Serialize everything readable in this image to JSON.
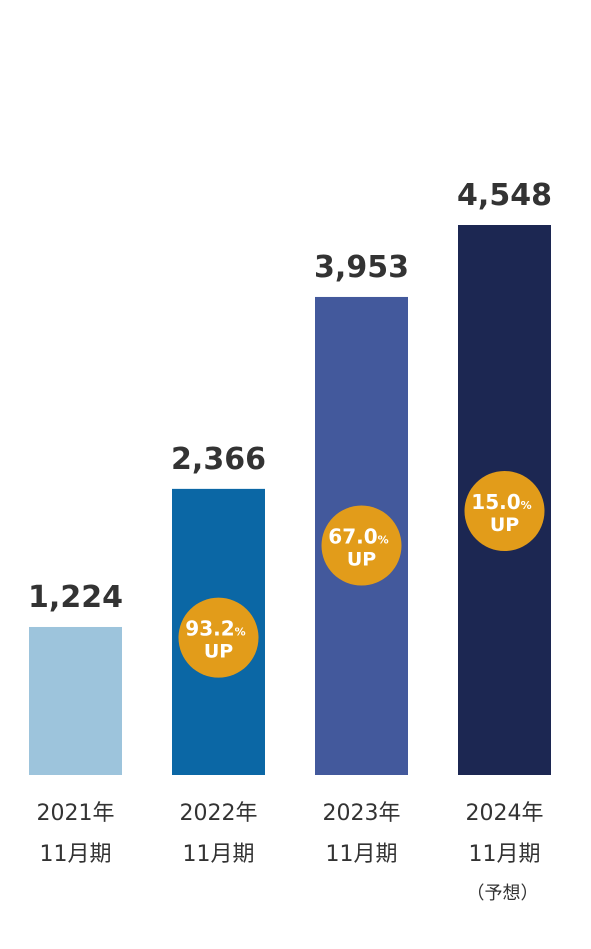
{
  "chart_data": {
    "type": "bar",
    "categories": [
      {
        "year": "2021年",
        "period": "11月期",
        "note": ""
      },
      {
        "year": "2022年",
        "period": "11月期",
        "note": ""
      },
      {
        "year": "2023年",
        "period": "11月期",
        "note": ""
      },
      {
        "year": "2024年",
        "period": "11月期",
        "note": "（予想）"
      }
    ],
    "values": [
      1224,
      2366,
      3953,
      4548
    ],
    "value_labels": [
      "1,224",
      "2,366",
      "3,953",
      "4,548"
    ],
    "bar_colors": [
      "#9dc4dc",
      "#0b67a5",
      "#43599c",
      "#1c2752"
    ],
    "growth": [
      null,
      {
        "value": "93.2",
        "unit": "%",
        "label": "UP"
      },
      {
        "value": "67.0",
        "unit": "%",
        "label": "UP"
      },
      {
        "value": "15.0",
        "unit": "%",
        "label": "UP"
      }
    ],
    "badge_color": "#e29c1a",
    "ylim": [
      0,
      4548
    ],
    "grid": false,
    "title": "",
    "xlabel": "",
    "ylabel": ""
  }
}
